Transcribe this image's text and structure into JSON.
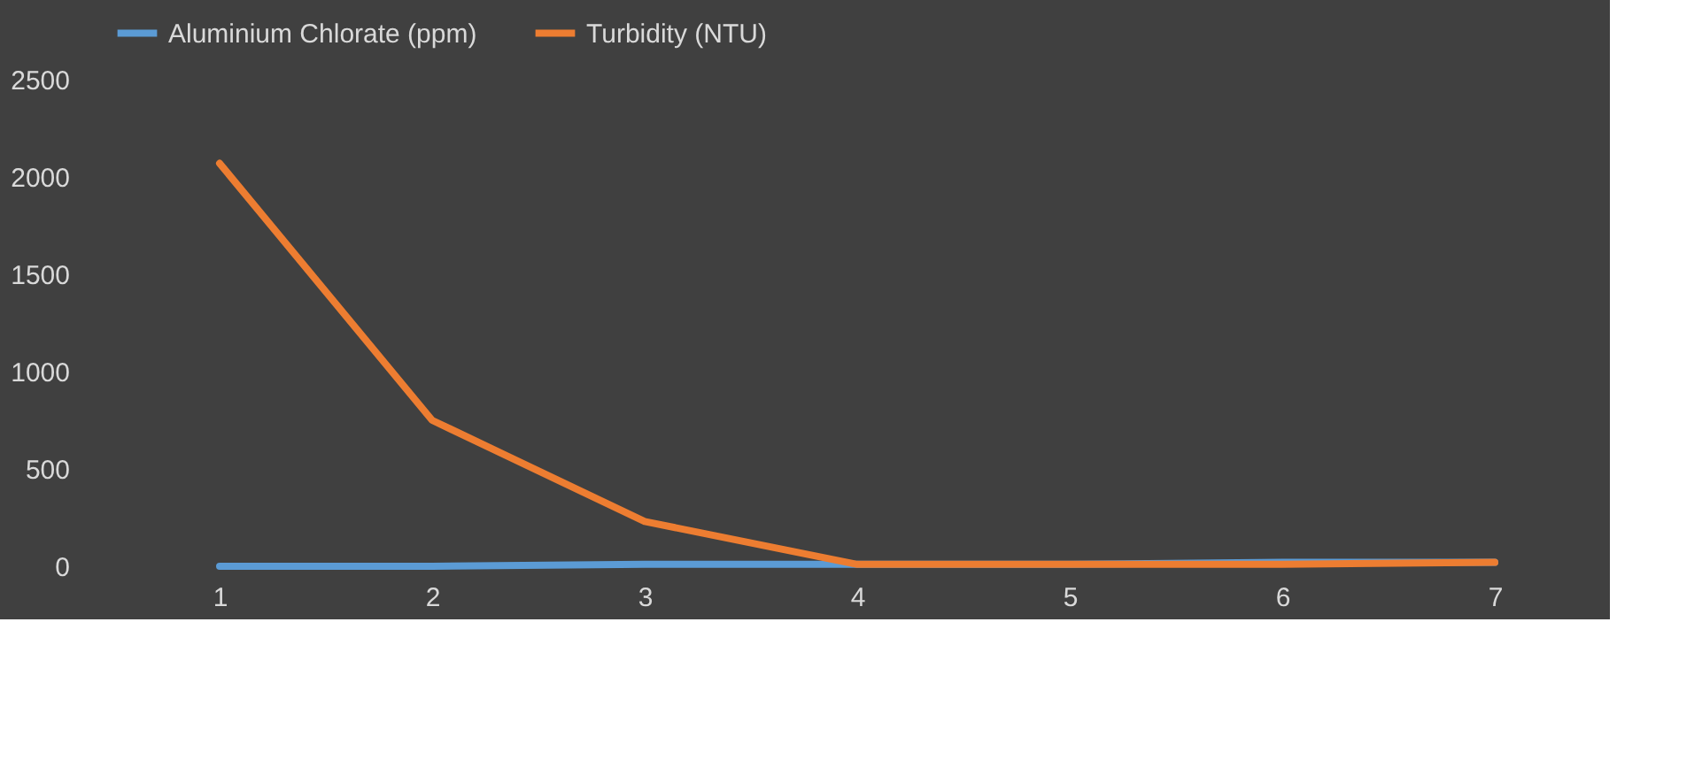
{
  "chart_data": {
    "type": "line",
    "categories": [
      "1",
      "2",
      "3",
      "4",
      "5",
      "6",
      "7"
    ],
    "series": [
      {
        "name": "Aluminium Chlorate  (ppm)",
        "color": "#5b9bd5",
        "values": [
          0,
          0,
          10,
          10,
          10,
          20,
          20
        ]
      },
      {
        "name": "Turbidity (NTU)",
        "color": "#ed7d31",
        "values": [
          2070,
          750,
          230,
          10,
          10,
          10,
          20
        ]
      }
    ],
    "ylim": [
      0,
      2500
    ],
    "yticks": [
      0,
      500,
      1000,
      1500,
      2000,
      2500
    ],
    "grid": false,
    "legend": "top",
    "marker": "none",
    "line_style": "solid"
  }
}
